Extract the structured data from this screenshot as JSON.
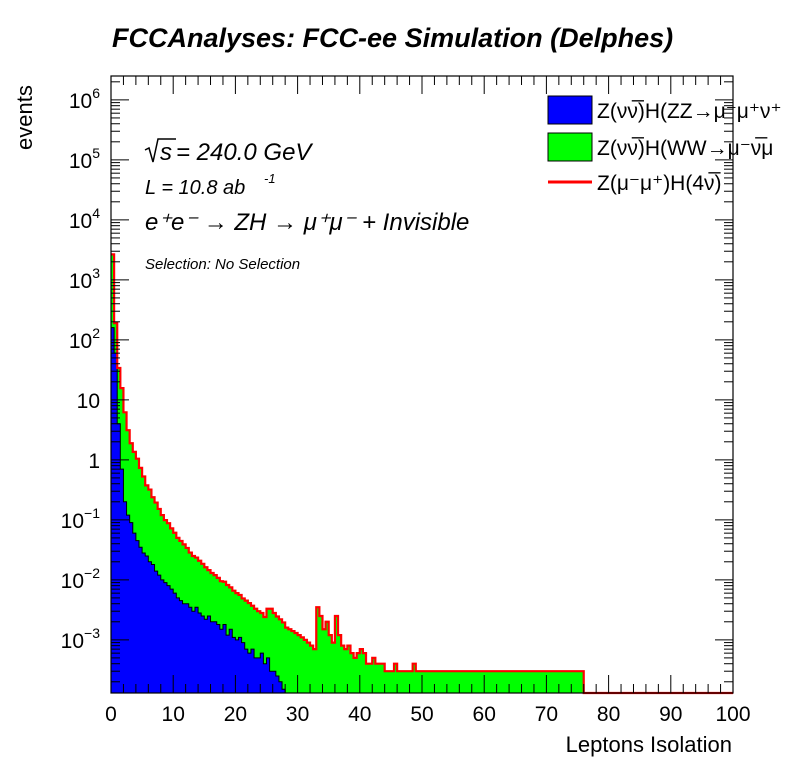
{
  "chart_data": {
    "type": "area",
    "stacked": true,
    "title": "FCCAnalyses: FCC-ee Simulation (Delphes)",
    "xlabel": "Leptons Isolation",
    "ylabel": "events",
    "xlim": [
      0,
      100
    ],
    "ylim": [
      0.00013,
      2500000
    ],
    "log_y": true,
    "x_ticks": [
      "0",
      "10",
      "20",
      "30",
      "40",
      "50",
      "60",
      "70",
      "80",
      "90",
      "100"
    ],
    "y_ticks": [
      {
        "base": "10",
        "exp": "−3",
        "value": 0.001
      },
      {
        "base": "10",
        "exp": "−2",
        "value": 0.01
      },
      {
        "base": "10",
        "exp": "−1",
        "value": 0.1
      },
      {
        "base": "1",
        "exp": "",
        "value": 1
      },
      {
        "base": "10",
        "exp": "",
        "value": 10
      },
      {
        "base": "10",
        "exp": "2",
        "value": 100
      },
      {
        "base": "10",
        "exp": "3",
        "value": 1000
      },
      {
        "base": "10",
        "exp": "4",
        "value": 10000
      },
      {
        "base": "10",
        "exp": "5",
        "value": 100000
      },
      {
        "base": "10",
        "exp": "6",
        "value": 1000000
      }
    ],
    "bin_width": 0.5,
    "annotations": {
      "sqrt_s": "s",
      "energy": " = 240.0 GeV",
      "lumi_base": "L = 10.8 ab",
      "lumi_exp": "-1",
      "process": "e⁺e⁻ → ZH → μ⁺μ⁻ + Invisible",
      "selection": "Selection: No Selection"
    },
    "legend_position": "top-right",
    "series": [
      {
        "name": "Z(νν̅)H(ZZ→μ⁻μ⁺ν⁺",
        "color": "#0000ff",
        "style": "fill",
        "x_start": 0,
        "values": [
          160,
          60,
          4,
          0.7,
          0.2,
          0.12,
          0.09,
          0.06,
          0.045,
          0.035,
          0.028,
          0.025,
          0.02,
          0.018,
          0.014,
          0.012,
          0.01,
          0.009,
          0.008,
          0.007,
          0.006,
          0.005,
          0.0045,
          0.004,
          0.004,
          0.0035,
          0.003,
          0.0035,
          0.0028,
          0.0025,
          0.0022,
          0.0025,
          0.002,
          0.002,
          0.0018,
          0.0015,
          0.0018,
          0.0012,
          0.0015,
          0.0011,
          0.001,
          0.0011,
          0.0009,
          0.0007,
          0.0006,
          0.0007,
          0.0005,
          0.0005,
          0.0006,
          0.0004,
          0.0005,
          0.0003,
          0.0003,
          0.00025,
          0.0002,
          0.00015
        ]
      },
      {
        "name": "Z(νν̅)H(WW→μ⁻ν̅μ",
        "color": "#00ff00",
        "style": "fill",
        "x_start": 0,
        "values": [
          2500,
          130,
          30,
          15,
          6,
          3,
          1.8,
          1.3,
          1,
          0.7,
          0.5,
          0.35,
          0.3,
          0.22,
          0.18,
          0.14,
          0.11,
          0.09,
          0.08,
          0.065,
          0.055,
          0.045,
          0.04,
          0.035,
          0.03,
          0.025,
          0.022,
          0.02,
          0.018,
          0.016,
          0.014,
          0.012,
          0.011,
          0.01,
          0.009,
          0.008,
          0.0075,
          0.007,
          0.006,
          0.0055,
          0.005,
          0.0045,
          0.004,
          0.0038,
          0.0035,
          0.003,
          0.0028,
          0.0025,
          0.0022,
          0.002,
          0.0028,
          0.003,
          0.0025,
          0.0022,
          0.002,
          0.0018,
          0.0016,
          0.0015,
          0.0014,
          0.0013,
          0.0012,
          0.0011,
          0.001,
          0.0009,
          0.0008,
          0.0007,
          0.0035,
          0.0025,
          0.0015,
          0.002,
          0.0012,
          0.0009,
          0.0025,
          0.0012,
          0.0008,
          0.0007,
          0.0008,
          0.0006,
          0.0005,
          0.0006,
          0.0007,
          0.0006,
          0.0004,
          0.0004,
          0.0005,
          0.0004,
          0.0004,
          0.0004,
          0.0003,
          0.0003,
          0.0003,
          0.0004,
          0.0003,
          0.0003,
          0.0003,
          0.0003,
          0.0003,
          0.0004,
          0.0003,
          0.0003,
          0.0003,
          0.0003,
          0.0003,
          0.0003,
          0.0003,
          0.0003,
          0.0003,
          0.0003,
          0.0003,
          0.0003,
          0.0003,
          0.0003,
          0.0003,
          0.0003,
          0.0003,
          0.0003,
          0.0003,
          0.0003,
          0.0003,
          0.0003,
          0.0003,
          0.0003,
          0.0003,
          0.0003,
          0.0003,
          0.0003,
          0.0003,
          0.0003,
          0.0003,
          0.0003,
          0.0003,
          0.0003,
          0.0003,
          0.0003,
          0.0003,
          0.0003,
          0.0003,
          0.0003,
          0.0003,
          0.0003,
          0.0003,
          0.0003,
          0.0003,
          0.0003,
          0.0003,
          0.0003,
          0.0003,
          0.0003,
          0.0003,
          0.0003,
          0.0003,
          0.0003
        ]
      },
      {
        "name": "Z(μ⁻μ⁺)H(4ν̅)",
        "color": "#ff0000",
        "style": "line",
        "x_start": 0,
        "values": [
          0.0001
        ]
      }
    ]
  }
}
